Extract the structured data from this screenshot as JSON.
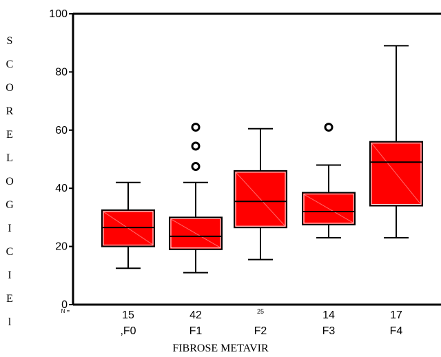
{
  "chart_data": {
    "type": "box",
    "ylabel": "S C O R E   L O G I C I E l",
    "xlabel": "FIBROSE METAVIR",
    "ylim": [
      0,
      100
    ],
    "yticks": [
      0,
      20,
      40,
      60,
      80,
      100
    ],
    "n_label": "N =",
    "categories": [
      ",F0",
      "F1",
      "F2",
      "F3",
      "F4"
    ],
    "n": [
      "15",
      "42",
      "25",
      "14",
      "17"
    ],
    "boxes": [
      {
        "min": 12.5,
        "q1": 20,
        "median": 26.5,
        "q3": 32.5,
        "max": 42,
        "outliers": []
      },
      {
        "min": 11,
        "q1": 19,
        "median": 23.5,
        "q3": 30,
        "max": 42,
        "outliers": [
          47.5,
          54.5,
          61
        ]
      },
      {
        "min": 15.5,
        "q1": 26.5,
        "median": 35.5,
        "q3": 46,
        "max": 60.5,
        "outliers": []
      },
      {
        "min": 23,
        "q1": 27.5,
        "median": 32,
        "q3": 38.5,
        "max": 48,
        "outliers": [
          61
        ]
      },
      {
        "min": 23,
        "q1": 34,
        "median": 49,
        "q3": 56,
        "max": 89,
        "outliers": []
      }
    ],
    "colors": {
      "box_fill": "#ff0000",
      "line": "#000000"
    }
  }
}
